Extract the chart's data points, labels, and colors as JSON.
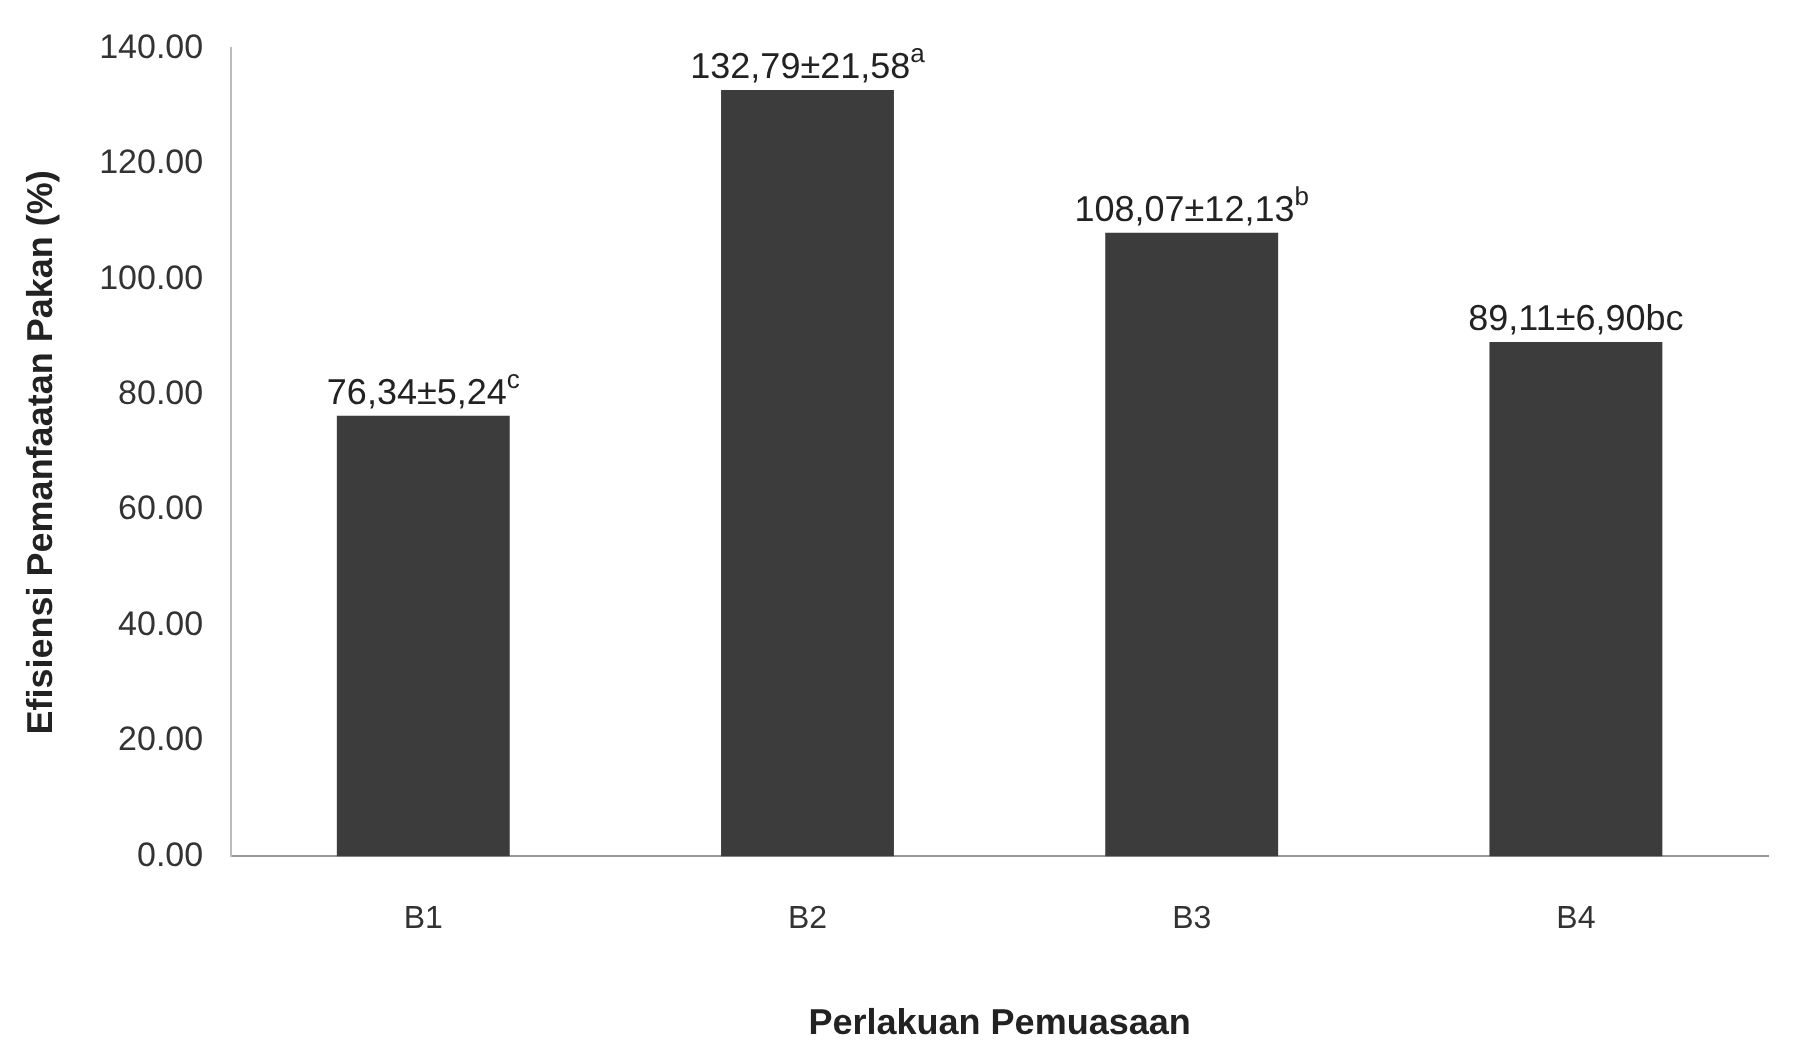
{
  "chart_data": {
    "type": "bar",
    "xlabel": "Perlakuan Pemuasaan",
    "ylabel": "Efisiensi Pemanfaatan Pakan (%)",
    "categories": [
      "B1",
      "B2",
      "B3",
      "B4"
    ],
    "values": [
      76.34,
      132.79,
      108.07,
      89.11
    ],
    "value_labels": [
      "76,34±5,24$^{c}$",
      "132,79±21,58$^{a}$",
      "108,07±12,13$^{b}$",
      "89,11±6,90bc"
    ],
    "color": "#3c3c3c",
    "ylim": [
      0,
      140
    ],
    "yticks": [
      {
        "value": 0,
        "label": "0.00"
      },
      {
        "value": 20,
        "label": "20.00"
      },
      {
        "value": 40,
        "label": "40.00"
      },
      {
        "value": 60,
        "label": "60.00"
      },
      {
        "value": 80,
        "label": "80.00"
      },
      {
        "value": 100,
        "label": "100.00"
      },
      {
        "value": 120,
        "label": "120.00"
      },
      {
        "value": 140,
        "label": "140.00"
      }
    ],
    "grid": false,
    "legend": false
  }
}
